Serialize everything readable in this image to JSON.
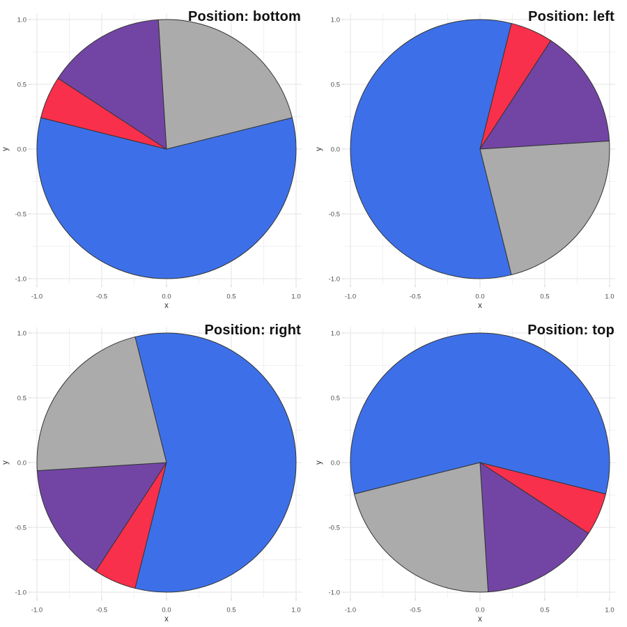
{
  "chart_data": {
    "type": "pie",
    "layout": "2x2-grid",
    "description": "Four identical pie charts; the large blue slice is rotated to face the direction named in each panel title. Slices proceed clockwise from the blue slice in order blue, red, purple, gray.",
    "slices": [
      {
        "label": "blue",
        "color": "#3D70E8",
        "fraction": 0.578
      },
      {
        "label": "red",
        "color": "#F8304B",
        "fraction": 0.053
      },
      {
        "label": "purple",
        "color": "#7245A5",
        "fraction": 0.148
      },
      {
        "label": "gray",
        "color": "#ABABAB",
        "fraction": 0.221
      }
    ],
    "panels": [
      {
        "title": "Position: bottom",
        "position": "bottom",
        "blue_center_angle_deg": -90
      },
      {
        "title": "Position: left",
        "position": "left",
        "blue_center_angle_deg": 180
      },
      {
        "title": "Position: right",
        "position": "right",
        "blue_center_angle_deg": 0
      },
      {
        "title": "Position: top",
        "position": "top",
        "blue_center_angle_deg": 90
      }
    ],
    "axes": {
      "xlabel": "x",
      "ylabel": "y",
      "x_tick_labels": [
        "-1.0",
        "-0.5",
        "0.0",
        "0.5",
        "1.0"
      ],
      "y_tick_labels": [
        "-1.0",
        "-0.5",
        "0.0",
        "0.5",
        "1.0"
      ],
      "major_tick_values": [
        -1.0,
        -0.5,
        0.0,
        0.5,
        1.0
      ],
      "minor_tick_values": [
        -0.75,
        -0.25,
        0.25,
        0.75
      ],
      "xlim": [
        -1.05,
        1.05
      ],
      "ylim": [
        -1.05,
        1.05
      ],
      "grid": true
    },
    "style": {
      "background": "#FFFFFF",
      "grid_major_color": "#E3E3E3",
      "grid_minor_color": "#F0F0F0",
      "tick_mark_color": "#CFCFCF",
      "tick_text_color": "#4D4D4D",
      "axis_label_color": "#333333",
      "title_color": "#111111",
      "slice_stroke_color": "#333333",
      "slice_stroke_width": 1
    }
  }
}
